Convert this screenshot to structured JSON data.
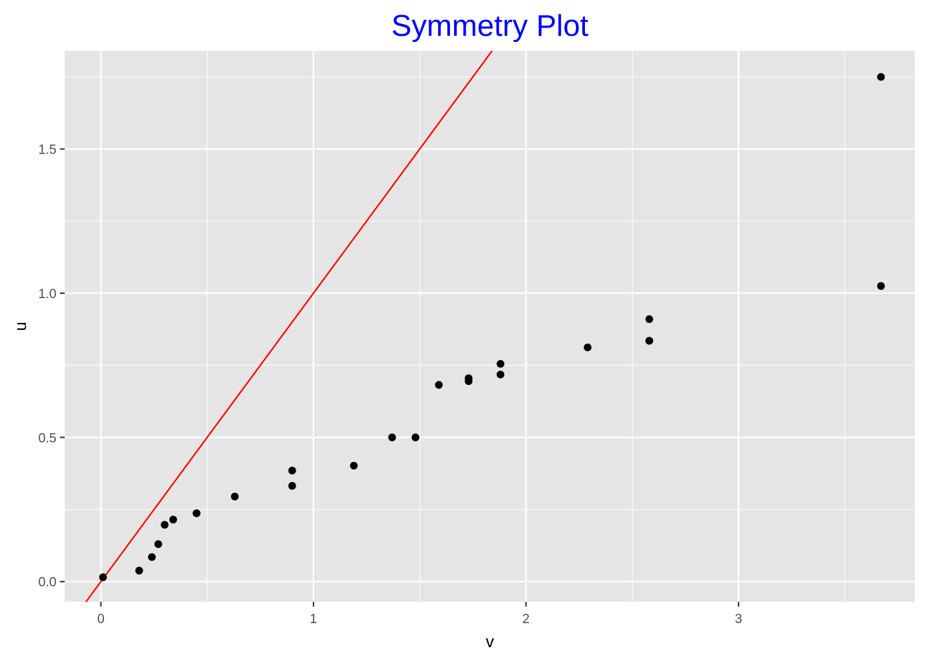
{
  "chart_data": {
    "type": "scatter",
    "title": "Symmetry Plot",
    "xlabel": "v",
    "ylabel": "u",
    "xlim": [
      -0.17,
      3.83
    ],
    "ylim": [
      -0.07,
      1.84
    ],
    "x_ticks": [
      0,
      1,
      2,
      3
    ],
    "x_tick_labels": [
      "0",
      "1",
      "2",
      "3"
    ],
    "y_ticks": [
      0.0,
      0.5,
      1.0,
      1.5
    ],
    "y_tick_labels": [
      "0.0",
      "0.5",
      "1.0",
      "1.5"
    ],
    "grid": true,
    "reference_line": {
      "slope": 1,
      "intercept": 0
    },
    "points": [
      {
        "x": 0.01,
        "y": 0.015
      },
      {
        "x": 0.18,
        "y": 0.038
      },
      {
        "x": 0.24,
        "y": 0.085
      },
      {
        "x": 0.27,
        "y": 0.13
      },
      {
        "x": 0.3,
        "y": 0.197
      },
      {
        "x": 0.34,
        "y": 0.215
      },
      {
        "x": 0.45,
        "y": 0.237
      },
      {
        "x": 0.45,
        "y": 0.237
      },
      {
        "x": 0.63,
        "y": 0.295
      },
      {
        "x": 0.9,
        "y": 0.332
      },
      {
        "x": 0.9,
        "y": 0.385
      },
      {
        "x": 1.19,
        "y": 0.402
      },
      {
        "x": 1.37,
        "y": 0.5
      },
      {
        "x": 1.48,
        "y": 0.5
      },
      {
        "x": 1.59,
        "y": 0.682
      },
      {
        "x": 1.73,
        "y": 0.695
      },
      {
        "x": 1.73,
        "y": 0.705
      },
      {
        "x": 1.88,
        "y": 0.718
      },
      {
        "x": 1.88,
        "y": 0.755
      },
      {
        "x": 2.29,
        "y": 0.812
      },
      {
        "x": 2.58,
        "y": 0.835
      },
      {
        "x": 2.58,
        "y": 0.835
      },
      {
        "x": 2.58,
        "y": 0.91
      },
      {
        "x": 3.67,
        "y": 1.025
      },
      {
        "x": 3.67,
        "y": 1.75
      }
    ],
    "colors": {
      "title": "#0000ff",
      "panel": "#e5e5e5",
      "grid": "#ffffff",
      "points": "#000000",
      "line": "#ff0000",
      "tick_labels": "#4d4d4d",
      "axis_titles": "#000000"
    }
  }
}
